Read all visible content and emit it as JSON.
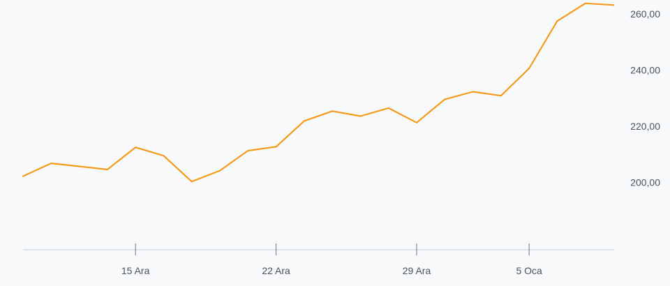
{
  "chart_data": {
    "type": "line",
    "title": "",
    "xlabel": "",
    "ylabel": "",
    "x_tick_labels": [
      {
        "label": "15 Ara",
        "index": 4
      },
      {
        "label": "22 Ara",
        "index": 9
      },
      {
        "label": "29 Ara",
        "index": 14
      },
      {
        "label": "5 Oca",
        "index": 18
      }
    ],
    "y_tick_labels": [
      "200,00",
      "220,00",
      "240,00",
      "260,00"
    ],
    "y_ticks": [
      200,
      220,
      240,
      260
    ],
    "ylim": [
      176,
      265
    ],
    "y_axis_position": "right",
    "grid": false,
    "legend": "none",
    "series": [
      {
        "values": [
          202.2,
          206.8,
          205.7,
          204.6,
          212.5,
          209.5,
          200.3,
          204.2,
          211.3,
          212.7,
          221.9,
          225.4,
          223.6,
          226.5,
          221.3,
          229.6,
          232.3,
          230.9,
          240.6,
          257.5,
          263.8,
          263.2
        ],
        "color": "#f59b1b"
      }
    ]
  }
}
